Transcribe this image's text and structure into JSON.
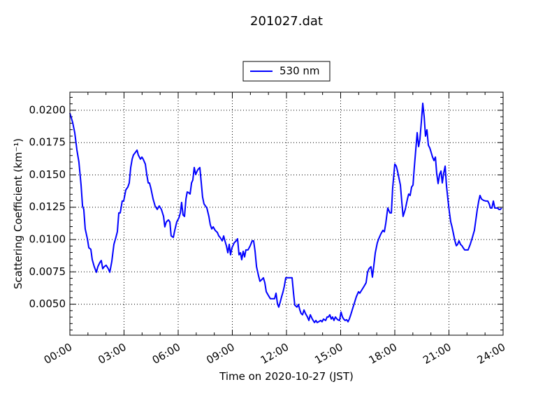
{
  "chart_data": {
    "type": "line",
    "title": "201027.dat",
    "xlabel": "Time on 2020-10-27 (JST)",
    "ylabel": "Scattering Coefficient (km⁻¹)",
    "x": [
      0,
      0.15,
      0.27,
      0.39,
      0.5,
      0.62,
      0.7,
      0.77,
      0.85,
      0.97,
      1.05,
      1.16,
      1.24,
      1.35,
      1.47,
      1.55,
      1.66,
      1.74,
      1.82,
      1.9,
      2.01,
      2.13,
      2.21,
      2.32,
      2.44,
      2.55,
      2.63,
      2.71,
      2.79,
      2.9,
      2.98,
      3.1,
      3.21,
      3.29,
      3.37,
      3.45,
      3.52,
      3.64,
      3.72,
      3.79,
      3.91,
      3.99,
      4.06,
      4.18,
      4.26,
      4.34,
      4.41,
      4.49,
      4.61,
      4.72,
      4.84,
      4.95,
      5.07,
      5.19,
      5.26,
      5.34,
      5.46,
      5.54,
      5.61,
      5.73,
      5.81,
      5.92,
      6.04,
      6.12,
      6.19,
      6.27,
      6.35,
      6.43,
      6.5,
      6.58,
      6.66,
      6.74,
      6.81,
      6.89,
      6.97,
      7.05,
      7.12,
      7.2,
      7.28,
      7.35,
      7.43,
      7.51,
      7.59,
      7.7,
      7.78,
      7.86,
      7.94,
      8.05,
      8.17,
      8.25,
      8.32,
      8.44,
      8.52,
      8.59,
      8.67,
      8.75,
      8.83,
      8.9,
      8.98,
      9.1,
      9.21,
      9.29,
      9.37,
      9.45,
      9.52,
      9.6,
      9.68,
      9.75,
      9.87,
      9.99,
      10.1,
      10.18,
      10.26,
      10.34,
      10.45,
      10.53,
      10.65,
      10.72,
      10.8,
      10.88,
      10.99,
      11.11,
      11.23,
      11.34,
      11.42,
      11.5,
      11.57,
      11.65,
      11.73,
      11.81,
      11.88,
      11.96,
      12.04,
      12.15,
      12.31,
      12.39,
      12.46,
      12.58,
      12.66,
      12.74,
      12.81,
      12.89,
      12.97,
      13.05,
      13.16,
      13.24,
      13.32,
      13.43,
      13.55,
      13.63,
      13.7,
      13.78,
      13.9,
      13.97,
      14.05,
      14.17,
      14.25,
      14.32,
      14.4,
      14.48,
      14.55,
      14.63,
      14.71,
      14.83,
      14.94,
      15.02,
      15.1,
      15.17,
      15.25,
      15.33,
      15.41,
      15.48,
      15.56,
      15.64,
      15.75,
      15.87,
      15.99,
      16.06,
      16.18,
      16.3,
      16.41,
      16.49,
      16.57,
      16.68,
      16.76,
      16.84,
      16.92,
      17.03,
      17.11,
      17.23,
      17.34,
      17.42,
      17.5,
      17.61,
      17.73,
      17.81,
      17.88,
      18.0,
      18.08,
      18.15,
      18.23,
      18.31,
      18.39,
      18.46,
      18.58,
      18.7,
      18.77,
      18.85,
      18.93,
      19.01,
      19.08,
      19.16,
      19.24,
      19.32,
      19.39,
      19.47,
      19.55,
      19.63,
      19.7,
      19.78,
      19.86,
      19.94,
      20.01,
      20.09,
      20.17,
      20.25,
      20.32,
      20.4,
      20.48,
      20.56,
      20.63,
      20.71,
      20.79,
      20.86,
      20.94,
      21.02,
      21.1,
      21.17,
      21.25,
      21.33,
      21.41,
      21.48,
      21.56,
      21.64,
      21.72,
      21.79,
      21.87,
      21.95,
      22.06,
      22.18,
      22.3,
      22.41,
      22.49,
      22.57,
      22.65,
      22.72,
      22.8,
      22.92,
      23.03,
      23.15,
      23.23,
      23.3,
      23.38,
      23.46,
      23.54,
      23.61,
      23.69,
      23.77,
      23.85,
      23.92
    ],
    "series": [
      {
        "name": "530 nm",
        "color": "#0000ff",
        "values": [
          0.01978,
          0.01908,
          0.01827,
          0.01692,
          0.016,
          0.01422,
          0.0126,
          0.01233,
          0.01082,
          0.01006,
          0.00936,
          0.00925,
          0.00844,
          0.0079,
          0.00747,
          0.0079,
          0.00822,
          0.00838,
          0.00774,
          0.0079,
          0.00801,
          0.00774,
          0.00747,
          0.00828,
          0.00963,
          0.01017,
          0.0106,
          0.01206,
          0.01206,
          0.01298,
          0.01298,
          0.01384,
          0.01406,
          0.01438,
          0.01557,
          0.01622,
          0.01654,
          0.01676,
          0.01692,
          0.01654,
          0.01622,
          0.01638,
          0.01622,
          0.01584,
          0.01503,
          0.01438,
          0.01438,
          0.01395,
          0.01314,
          0.0126,
          0.01233,
          0.0126,
          0.01233,
          0.01179,
          0.01098,
          0.01136,
          0.01152,
          0.01136,
          0.01028,
          0.01017,
          0.01071,
          0.01136,
          0.01168,
          0.01206,
          0.01287,
          0.0119,
          0.01179,
          0.01314,
          0.01368,
          0.01363,
          0.01352,
          0.01438,
          0.0146,
          0.01557,
          0.01503,
          0.0153,
          0.01546,
          0.01557,
          0.01438,
          0.0133,
          0.01276,
          0.0126,
          0.01244,
          0.01179,
          0.01114,
          0.01082,
          0.01098,
          0.01071,
          0.01055,
          0.01028,
          0.01017,
          0.0099,
          0.01028,
          0.0099,
          0.00952,
          0.00898,
          0.00963,
          0.00882,
          0.00936,
          0.00974,
          0.0099,
          0.01006,
          0.00882,
          0.00898,
          0.00844,
          0.00909,
          0.00866,
          0.0092,
          0.0092,
          0.00952,
          0.0099,
          0.0099,
          0.00909,
          0.0079,
          0.0072,
          0.00677,
          0.00693,
          0.00704,
          0.00666,
          0.00596,
          0.00569,
          0.00542,
          0.00542,
          0.00542,
          0.00585,
          0.00504,
          0.00477,
          0.00515,
          0.00558,
          0.00596,
          0.00639,
          0.00704,
          0.00704,
          0.00704,
          0.00704,
          0.00585,
          0.00493,
          0.00477,
          0.00498,
          0.00455,
          0.00428,
          0.00418,
          0.00455,
          0.00428,
          0.00401,
          0.00374,
          0.00418,
          0.00385,
          0.00358,
          0.00374,
          0.00358,
          0.00364,
          0.00374,
          0.00364,
          0.00385,
          0.00374,
          0.00401,
          0.00401,
          0.00418,
          0.00385,
          0.00401,
          0.00374,
          0.00401,
          0.0038,
          0.00374,
          0.00439,
          0.00401,
          0.00385,
          0.00374,
          0.0038,
          0.00364,
          0.00385,
          0.00418,
          0.00455,
          0.00504,
          0.00558,
          0.00596,
          0.00585,
          0.00612,
          0.00639,
          0.00666,
          0.00747,
          0.00774,
          0.0079,
          0.00709,
          0.00801,
          0.00898,
          0.00974,
          0.01006,
          0.01044,
          0.01071,
          0.0106,
          0.01125,
          0.01244,
          0.01206,
          0.01206,
          0.01395,
          0.01584,
          0.01568,
          0.0153,
          0.01476,
          0.01422,
          0.01287,
          0.01179,
          0.01233,
          0.01314,
          0.01352,
          0.01341,
          0.01406,
          0.01422,
          0.01557,
          0.01692,
          0.01827,
          0.01719,
          0.01773,
          0.01908,
          0.02054,
          0.01946,
          0.018,
          0.01849,
          0.0173,
          0.01708,
          0.01676,
          0.01638,
          0.01611,
          0.01638,
          0.01514,
          0.01433,
          0.01503,
          0.0153,
          0.01438,
          0.01514,
          0.01568,
          0.01422,
          0.01314,
          0.01217,
          0.01136,
          0.01098,
          0.01044,
          0.0099,
          0.00952,
          0.00963,
          0.0099,
          0.00963,
          0.00952,
          0.00936,
          0.0092,
          0.0092,
          0.0092,
          0.00963,
          0.01017,
          0.01071,
          0.01152,
          0.01233,
          0.01298,
          0.01341,
          0.01314,
          0.01303,
          0.01298,
          0.01298,
          0.01276,
          0.01244,
          0.01244,
          0.01298,
          0.01244,
          0.01244,
          0.01244,
          0.01233,
          0.01233,
          0.01244
        ]
      }
    ],
    "xlim": [
      0,
      24
    ],
    "xticks": [
      {
        "value": 0,
        "label": "00:00"
      },
      {
        "value": 3,
        "label": "03:00"
      },
      {
        "value": 6,
        "label": "06:00"
      },
      {
        "value": 9,
        "label": "09:00"
      },
      {
        "value": 12,
        "label": "12:00"
      },
      {
        "value": 15,
        "label": "15:00"
      },
      {
        "value": 18,
        "label": "18:00"
      },
      {
        "value": 21,
        "label": "21:00"
      },
      {
        "value": 24,
        "label": "24:00"
      }
    ],
    "xminorticks": [
      1,
      2,
      4,
      5,
      7,
      8,
      10,
      11,
      13,
      14,
      16,
      17,
      19,
      20,
      22,
      23
    ],
    "ylim": [
      0.0026,
      0.0214
    ],
    "yticks": [
      {
        "value": 0.005,
        "label": "0.0050"
      },
      0.0075,
      {
        "value": 0.01,
        "label": "0.0100"
      },
      0.0125,
      {
        "value": 0.015,
        "label": "0.0150"
      },
      0.0175,
      {
        "value": 0.02,
        "label": "0.0200"
      }
    ],
    "yminorticks": [
      0.003,
      0.0035,
      0.004,
      0.0045,
      0.0055,
      0.006,
      0.0065,
      0.007,
      0.008,
      0.0085,
      0.009,
      0.0095,
      0.0105,
      0.011,
      0.0115,
      0.012,
      0.013,
      0.0135,
      0.014,
      0.0145,
      0.0155,
      0.016,
      0.0165,
      0.017,
      0.018,
      0.0185,
      0.019,
      0.0195,
      0.0205,
      0.021
    ],
    "grid": true,
    "legend": "upper center"
  }
}
